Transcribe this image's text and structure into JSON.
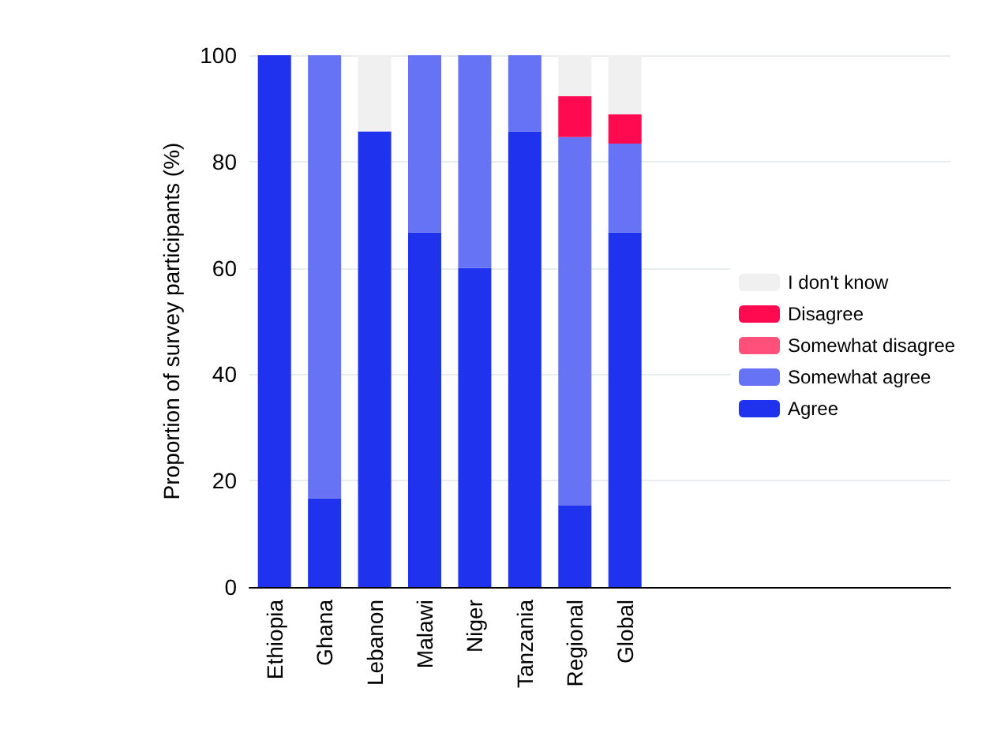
{
  "chart_data": {
    "type": "bar",
    "stacked": true,
    "ylabel": "Proportion of survey participants (%)",
    "categories": [
      "Ethiopia",
      "Ghana",
      "Lebanon",
      "Malawi",
      "Niger",
      "Tanzania",
      "Regional",
      "Global"
    ],
    "series": [
      {
        "name": "Agree",
        "color": "#1f33ee",
        "values": [
          100,
          16.7,
          85.7,
          66.7,
          60,
          85.7,
          15.4,
          66.7
        ]
      },
      {
        "name": "Somewhat agree",
        "color": "#6673f5",
        "values": [
          0,
          83.3,
          0,
          33.3,
          40,
          14.3,
          69.2,
          16.7
        ]
      },
      {
        "name": "Somewhat disagree",
        "color": "#ff4f7b",
        "values": [
          0,
          0,
          0,
          0,
          0,
          0,
          0,
          0
        ]
      },
      {
        "name": "Disagree",
        "color": "#ff0a50",
        "values": [
          0,
          0,
          0,
          0,
          0,
          0,
          7.7,
          5.5
        ]
      },
      {
        "name": "I don't know",
        "color": "#f0f0f0",
        "values": [
          0,
          0,
          14.3,
          0,
          0,
          0,
          7.7,
          11.1
        ]
      }
    ],
    "ylim": [
      0,
      100
    ],
    "yticks": [
      0,
      20,
      40,
      60,
      80,
      100
    ],
    "grid": "y",
    "legend": "right"
  }
}
